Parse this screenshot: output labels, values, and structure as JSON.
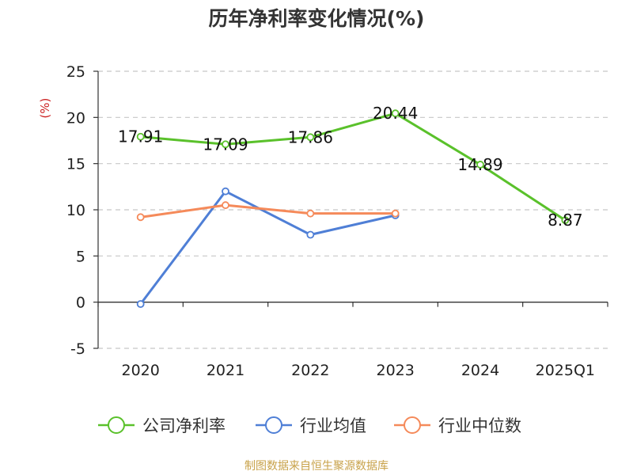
{
  "chart_data": {
    "type": "line",
    "title": "历年净利率变化情况(%)",
    "ylabel": "(%)",
    "xlabel": "",
    "categories": [
      "2020",
      "2021",
      "2022",
      "2023",
      "2024",
      "2025Q1"
    ],
    "ylim": [
      -5,
      25
    ],
    "yticks": [
      -5,
      0,
      5,
      10,
      15,
      20,
      25
    ],
    "grid": true,
    "legend_position": "bottom",
    "series": [
      {
        "name": "公司净利率",
        "color": "#5ac12b",
        "values": [
          17.91,
          17.09,
          17.86,
          20.44,
          14.89,
          8.87
        ],
        "labels": [
          "17.91",
          "17.09",
          "17.86",
          "20.44",
          "14.89",
          "8.87"
        ],
        "show_labels": true
      },
      {
        "name": "行业均值",
        "color": "#4f7fd6",
        "values": [
          -0.2,
          12.0,
          7.3,
          9.4,
          null,
          null
        ],
        "show_labels": false
      },
      {
        "name": "行业中位数",
        "color": "#f58a5a",
        "values": [
          9.2,
          10.5,
          9.6,
          9.6,
          null,
          null
        ],
        "show_labels": false
      }
    ]
  },
  "footer": {
    "source": "制图数据来自恒生聚源数据库"
  }
}
